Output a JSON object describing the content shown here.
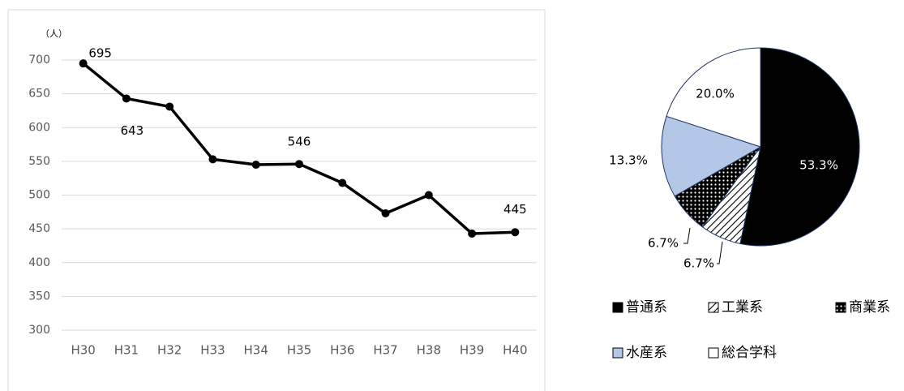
{
  "chart_data": [
    {
      "type": "line",
      "unit_label": "（人）",
      "categories": [
        "H30",
        "H31",
        "H32",
        "H33",
        "H34",
        "H35",
        "H36",
        "H37",
        "H38",
        "H39",
        "H40"
      ],
      "values": [
        695,
        643,
        631,
        553,
        545,
        546,
        518,
        473,
        500,
        443,
        445
      ],
      "value_labels": [
        695,
        643,
        null,
        null,
        null,
        546,
        null,
        null,
        null,
        null,
        445
      ],
      "color": "#000000",
      "ylim": [
        300,
        700
      ],
      "yticks": [
        300,
        350,
        400,
        450,
        500,
        550,
        600,
        650,
        700
      ],
      "grid": true
    },
    {
      "type": "pie",
      "categories": [
        "普通系",
        "工業系",
        "商業系",
        "水産系",
        "総合学科"
      ],
      "values": [
        53.3,
        6.7,
        6.7,
        13.3,
        20.0
      ],
      "value_labels": [
        "53.3%",
        "6.7%",
        "6.7%",
        "13.3%",
        "20.0%"
      ],
      "colors": [
        "#000000",
        "url(#hatch)",
        "url(#dots)",
        "#b4c7e7",
        "#ffffff"
      ]
    }
  ]
}
